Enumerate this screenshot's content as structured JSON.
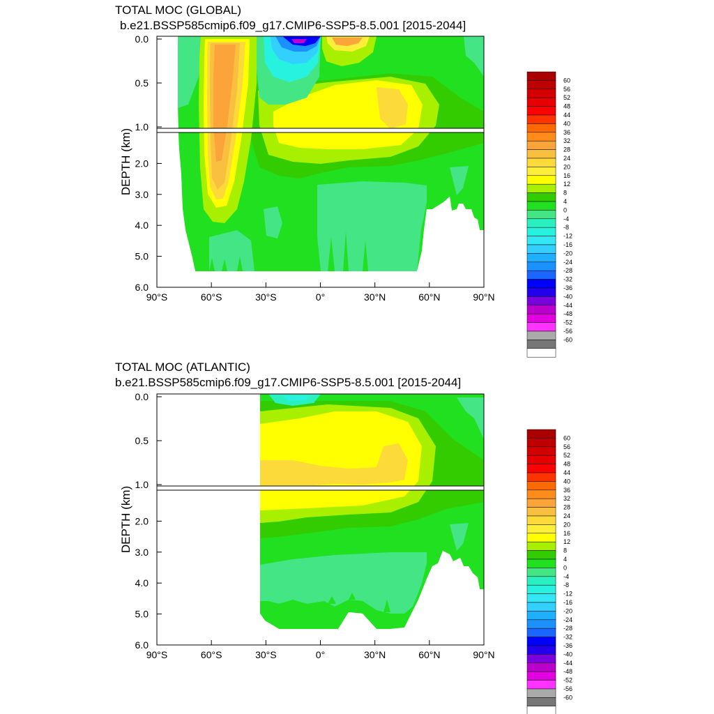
{
  "chart_data": [
    {
      "type": "heatmap",
      "title": "TOTAL MOC (GLOBAL)",
      "subtitle": "b.e21.BSSP585cmip6.f09_g17.CMIP6-SSP5-8.5.001 [2015-2044]",
      "ylabel": "DEPTH (km)",
      "x_tick_labels": [
        "90°S",
        "60°S",
        "30°S",
        "0°",
        "30°N",
        "60°N",
        "90°N"
      ],
      "x_ticks": [
        -90,
        -60,
        -30,
        0,
        30,
        60,
        90
      ],
      "xlim": [
        -90,
        90
      ],
      "y_upper_tick_labels": [
        "0.0",
        "0.5",
        "1.0"
      ],
      "y_upper_ticks": [
        0.0,
        0.5,
        1.0
      ],
      "y_lower_tick_labels": [
        "2.0",
        "3.0",
        "4.0",
        "5.0",
        "6.0"
      ],
      "y_lower_ticks": [
        2.0,
        3.0,
        4.0,
        5.0,
        6.0
      ],
      "ylim": [
        0,
        6
      ],
      "features": [
        {
          "x": -52,
          "y": 0.7,
          "value": 24
        },
        {
          "x": -52,
          "y": 2.2,
          "value": 24
        },
        {
          "x": -15,
          "y": 0.05,
          "value": -44
        },
        {
          "x": 14,
          "y": 0.05,
          "value": 20
        },
        {
          "x": 30,
          "y": 0.9,
          "value": 16
        },
        {
          "x": 30,
          "y": 3.8,
          "value": -4
        }
      ]
    },
    {
      "type": "heatmap",
      "title": "TOTAL MOC (ATLANTIC)",
      "subtitle": "b.e21.BSSP585cmip6.f09_g17.CMIP6-SSP5-8.5.001 [2015-2044]",
      "ylabel": "DEPTH (km)",
      "x_tick_labels": [
        "90°S",
        "60°S",
        "30°S",
        "0°",
        "30°N",
        "60°N",
        "90°N"
      ],
      "x_ticks": [
        -90,
        -60,
        -30,
        0,
        30,
        60,
        90
      ],
      "xlim": [
        -90,
        90
      ],
      "y_upper_tick_labels": [
        "0.0",
        "0.5",
        "1.0"
      ],
      "y_upper_ticks": [
        0.0,
        0.5,
        1.0
      ],
      "y_lower_tick_labels": [
        "2.0",
        "3.0",
        "4.0",
        "5.0",
        "6.0"
      ],
      "y_lower_ticks": [
        2.0,
        3.0,
        4.0,
        5.0,
        6.0
      ],
      "ylim": [
        0,
        6
      ],
      "features": [
        {
          "x": 20,
          "y": 0.8,
          "value": 16
        },
        {
          "x": -15,
          "y": 0.02,
          "value": -4
        },
        {
          "x": 20,
          "y": 3.8,
          "value": -4
        }
      ]
    }
  ],
  "colorbar": {
    "labels": [
      "60",
      "56",
      "52",
      "48",
      "44",
      "40",
      "36",
      "32",
      "28",
      "24",
      "20",
      "16",
      "12",
      "8",
      "4",
      "0",
      "-4",
      "-8",
      "-12",
      "-16",
      "-20",
      "-24",
      "-28",
      "-32",
      "-36",
      "-40",
      "-44",
      "-48",
      "-52",
      "-56",
      "-60"
    ],
    "colors": [
      "#aa0000",
      "#be0000",
      "#d20000",
      "#e60000",
      "#ff0000",
      "#ff3300",
      "#ff6a00",
      "#ff8c1a",
      "#fba43a",
      "#f9c040",
      "#fcda3a",
      "#fdee3a",
      "#ffff00",
      "#a8f000",
      "#33cc00",
      "#20e020",
      "#44e584",
      "#2af0c0",
      "#27f2e0",
      "#33e8f4",
      "#33d0ff",
      "#1eb0ff",
      "#1b90ff",
      "#1a66ff",
      "#0000ff",
      "#2200ee",
      "#7a00dd",
      "#bb00cc",
      "#e000e0",
      "#ff33ff",
      "#aaaaaa",
      "#777777",
      "#ffffff"
    ]
  }
}
